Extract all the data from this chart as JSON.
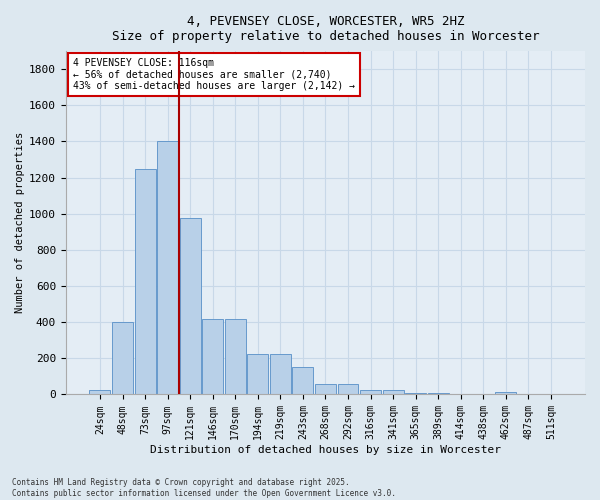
{
  "title_line1": "4, PEVENSEY CLOSE, WORCESTER, WR5 2HZ",
  "title_line2": "Size of property relative to detached houses in Worcester",
  "xlabel": "Distribution of detached houses by size in Worcester",
  "ylabel": "Number of detached properties",
  "categories": [
    "24sqm",
    "48sqm",
    "73sqm",
    "97sqm",
    "121sqm",
    "146sqm",
    "170sqm",
    "194sqm",
    "219sqm",
    "243sqm",
    "268sqm",
    "292sqm",
    "316sqm",
    "341sqm",
    "365sqm",
    "389sqm",
    "414sqm",
    "438sqm",
    "462sqm",
    "487sqm",
    "511sqm"
  ],
  "values": [
    25,
    400,
    1250,
    1400,
    975,
    415,
    415,
    225,
    225,
    150,
    60,
    60,
    25,
    25,
    10,
    10,
    0,
    0,
    15,
    5,
    5
  ],
  "bar_color": "#b8d0e8",
  "bar_edge_color": "#6699cc",
  "red_line_color": "#aa0000",
  "red_line_index": 3.5,
  "annotation_text": "4 PEVENSEY CLOSE: 116sqm\n← 56% of detached houses are smaller (2,740)\n43% of semi-detached houses are larger (2,142) →",
  "annotation_edge_color": "#cc0000",
  "ylim": [
    0,
    1900
  ],
  "yticks": [
    0,
    200,
    400,
    600,
    800,
    1000,
    1200,
    1400,
    1600,
    1800
  ],
  "grid_color": "#c8d8e8",
  "background_color": "#dde8f0",
  "plot_bg_color": "#e4edf5",
  "footer_line1": "Contains HM Land Registry data © Crown copyright and database right 2025.",
  "footer_line2": "Contains public sector information licensed under the Open Government Licence v3.0."
}
